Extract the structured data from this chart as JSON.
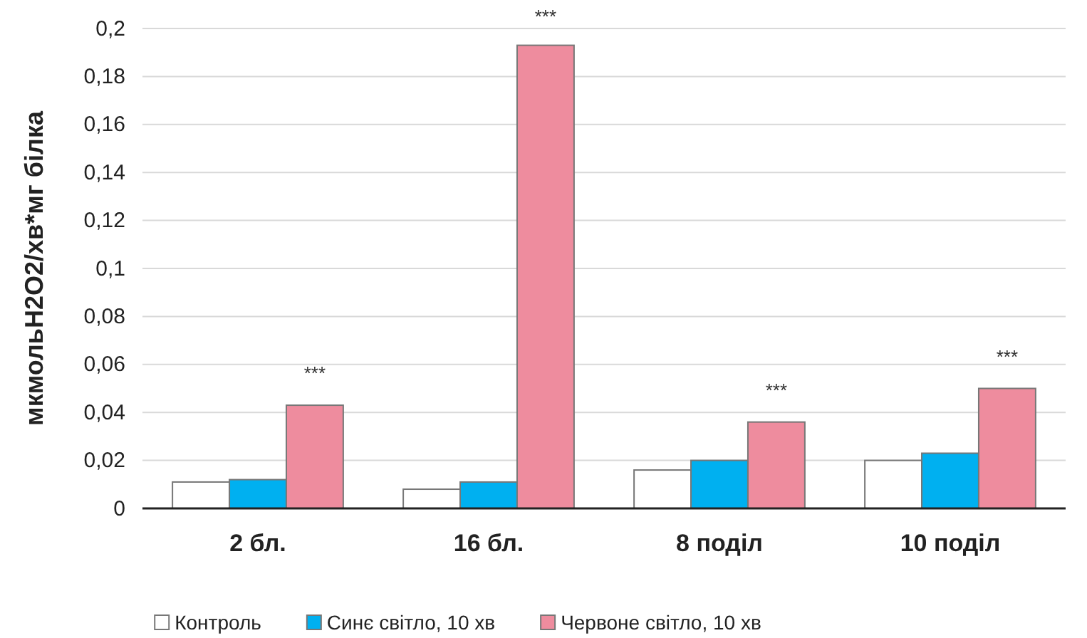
{
  "chart_data": {
    "type": "bar",
    "ylabel": "мкмольН2О2/хв*мг білка",
    "categories": [
      "2 бл.",
      "16 бл.",
      "8 поділ",
      "10 поділ"
    ],
    "series": [
      {
        "name": "Контроль",
        "color": "#ffffff",
        "values": [
          0.011,
          0.008,
          0.016,
          0.02
        ]
      },
      {
        "name": "Синє світло, 10 хв",
        "color": "#00b0f0",
        "values": [
          0.012,
          0.011,
          0.02,
          0.023
        ]
      },
      {
        "name": "Червоне світло, 10 хв",
        "color": "#ee8c9e",
        "values": [
          0.043,
          0.193,
          0.036,
          0.05
        ]
      }
    ],
    "ylim": [
      0,
      0.2
    ],
    "yticks": [
      {
        "value": 0,
        "label": "0"
      },
      {
        "value": 0.02,
        "label": "0,02"
      },
      {
        "value": 0.04,
        "label": "0,04"
      },
      {
        "value": 0.06,
        "label": "0,06"
      },
      {
        "value": 0.08,
        "label": "0,08"
      },
      {
        "value": 0.1,
        "label": "0,1"
      },
      {
        "value": 0.12,
        "label": "0,12"
      },
      {
        "value": 0.14,
        "label": "0,14"
      },
      {
        "value": 0.16,
        "label": "0,16"
      },
      {
        "value": 0.18,
        "label": "0,18"
      },
      {
        "value": 0.2,
        "label": "0,2"
      }
    ],
    "grid": "y",
    "legend": "bottom",
    "annotations": [
      "***",
      "***",
      "***",
      "***"
    ]
  }
}
